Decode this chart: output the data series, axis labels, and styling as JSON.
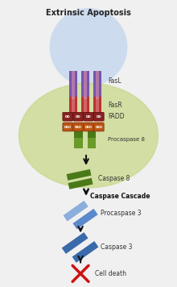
{
  "title": "Extrinsic Apoptosis",
  "bg_color": "#f0f0f0",
  "cell_ellipse_color": "#c8d88a",
  "cell_circle_color": "#ccdcee",
  "fasl_purple": "#7755aa",
  "fasl_pink": "#cc88aa",
  "fasr_red": "#bb3333",
  "fasr_pink": "#dd8888",
  "dd_dark": "#882222",
  "dd_orange": "#cc6622",
  "ded_orange": "#bb5511",
  "link_color": "#ddaa88",
  "green_dark": "#4a7a18",
  "green_light": "#6a9a28",
  "blue_dark": "#3a6aaa",
  "blue_medium": "#5a8acc",
  "blue_light": "#8aaedd",
  "arrow_color": "#111111",
  "red_cross": "#cc1111",
  "label_color": "#333333",
  "labels": {
    "fasl": "FasL",
    "fasr": "FasR",
    "fadd": "FADD",
    "procasp8": "Procaspase 8",
    "casp8": "Caspase 8",
    "casc_cascade": "Caspase Cascade",
    "procasp3": "Procaspase 3",
    "casp3": "Caspase 3",
    "cell_death": "Cell death"
  }
}
